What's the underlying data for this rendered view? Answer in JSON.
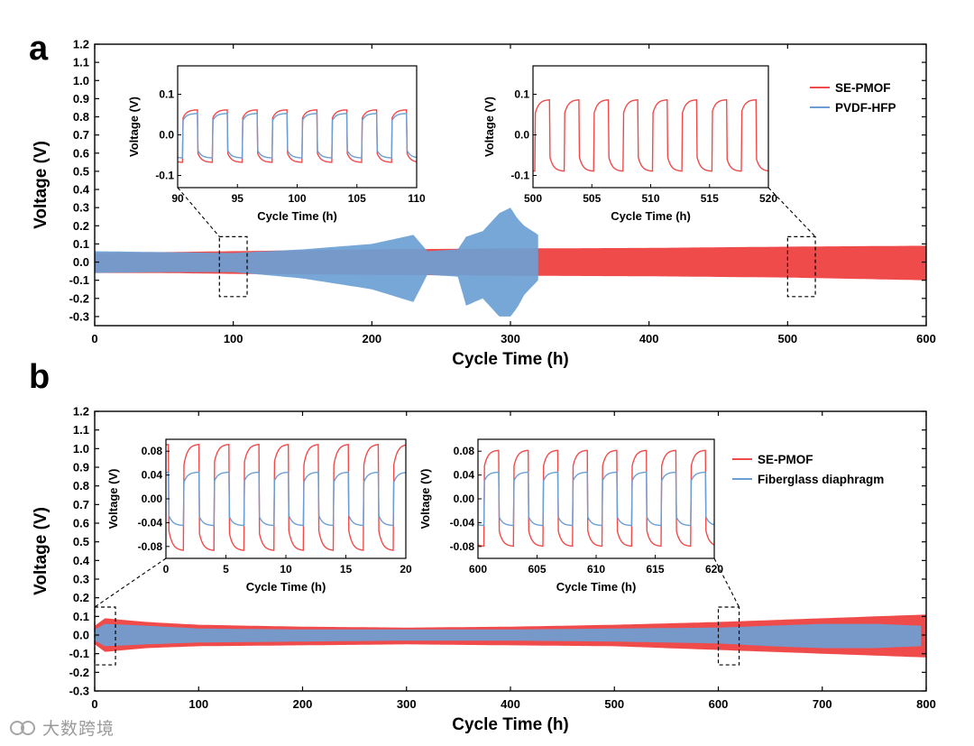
{
  "watermark": "大数跨境",
  "chart_data": [
    {
      "panel": "a",
      "type": "line",
      "xlabel": "Cycle Time (h)",
      "ylabel": "Voltage (V)",
      "xlim": [
        0,
        600
      ],
      "ylim": [
        -0.35,
        1.2
      ],
      "xticks": [
        0,
        100,
        200,
        300,
        400,
        500,
        600
      ],
      "yticks": [
        -0.3,
        -0.2,
        -0.1,
        0.0,
        0.1,
        0.2,
        0.3,
        0.4,
        0.5,
        0.6,
        0.7,
        0.8,
        0.9,
        1.0,
        1.1,
        1.2
      ],
      "legend": [
        "SE-PMOF",
        "PVDF-HFP"
      ],
      "legend_position": "top-right",
      "series": [
        {
          "name": "SE-PMOF",
          "color": "#f04b4b",
          "x_end": 600,
          "envelope_x": [
            0,
            50,
            100,
            200,
            300,
            400,
            500,
            600
          ],
          "upper": [
            0.05,
            0.055,
            0.06,
            0.07,
            0.075,
            0.078,
            0.085,
            0.09
          ],
          "lower": [
            -0.06,
            -0.06,
            -0.065,
            -0.07,
            -0.075,
            -0.078,
            -0.085,
            -0.1
          ]
        },
        {
          "name": "PVDF-HFP",
          "color": "#6b9fd4",
          "x_end": 320,
          "envelope_x": [
            0,
            50,
            100,
            150,
            200,
            230,
            240,
            262,
            268,
            280,
            292,
            300,
            305,
            310,
            320
          ],
          "upper": [
            0.06,
            0.055,
            0.05,
            0.07,
            0.1,
            0.15,
            0.06,
            0.07,
            0.14,
            0.17,
            0.27,
            0.3,
            0.24,
            0.2,
            0.15
          ],
          "lower": [
            -0.06,
            -0.055,
            -0.055,
            -0.09,
            -0.15,
            -0.22,
            -0.07,
            -0.08,
            -0.24,
            -0.2,
            -0.3,
            -0.3,
            -0.25,
            -0.18,
            -0.1
          ]
        }
      ],
      "zoom_boxes": [
        [
          90,
          110
        ],
        [
          500,
          520
        ]
      ],
      "insets": [
        {
          "xlabel": "Cycle Time (h)",
          "ylabel": "Voltage (V)",
          "xlim": [
            90,
            110
          ],
          "ylim": [
            -0.13,
            0.17
          ],
          "xticks": [
            90,
            95,
            100,
            105,
            110
          ],
          "yticks": [
            -0.1,
            0.0,
            0.1
          ],
          "period": 2.5,
          "x0": 90.4,
          "series": [
            {
              "name": "SE-PMOF",
              "color": "#f04b4b",
              "amp_pos": 0.062,
              "amp_neg": -0.068
            },
            {
              "name": "PVDF-HFP",
              "color": "#6b9fd4",
              "amp_pos": 0.053,
              "amp_neg": -0.057
            }
          ]
        },
        {
          "xlabel": "Cycle Time (h)",
          "ylabel": "Voltage (V)",
          "xlim": [
            500,
            520
          ],
          "ylim": [
            -0.13,
            0.17
          ],
          "xticks": [
            500,
            505,
            510,
            515,
            520
          ],
          "yticks": [
            -0.1,
            0.0,
            0.1
          ],
          "period": 2.5,
          "x0": 500.2,
          "series": [
            {
              "name": "SE-PMOF",
              "color": "#f04b4b",
              "amp_pos": 0.087,
              "amp_neg": -0.09
            }
          ]
        }
      ]
    },
    {
      "panel": "b",
      "type": "line",
      "xlabel": "Cycle Time (h)",
      "ylabel": "Voltage (V)",
      "xlim": [
        0,
        800
      ],
      "ylim": [
        -0.3,
        1.2
      ],
      "xticks": [
        0,
        100,
        200,
        300,
        400,
        500,
        600,
        700,
        800
      ],
      "yticks": [
        -0.3,
        -0.2,
        -0.1,
        0.0,
        0.1,
        0.2,
        0.3,
        0.4,
        0.5,
        0.6,
        0.7,
        0.8,
        0.9,
        1.0,
        1.1,
        1.2
      ],
      "legend": [
        "SE-PMOF",
        "Fiberglass diaphragm"
      ],
      "legend_position": "top-right",
      "series": [
        {
          "name": "SE-PMOF",
          "color": "#f04b4b",
          "x_end": 800,
          "envelope_x": [
            0,
            10,
            50,
            100,
            200,
            300,
            400,
            500,
            600,
            650,
            700,
            750,
            800
          ],
          "upper": [
            0.05,
            0.09,
            0.07,
            0.055,
            0.045,
            0.04,
            0.045,
            0.055,
            0.07,
            0.08,
            0.09,
            0.1,
            0.11
          ],
          "lower": [
            -0.05,
            -0.09,
            -0.07,
            -0.06,
            -0.055,
            -0.05,
            -0.055,
            -0.06,
            -0.08,
            -0.09,
            -0.1,
            -0.11,
            -0.12
          ]
        },
        {
          "name": "Fiberglass diaphragm",
          "color": "#6b9fd4",
          "x_end": 795,
          "envelope_x": [
            0,
            10,
            50,
            100,
            200,
            300,
            400,
            500,
            600,
            650,
            700,
            750,
            795
          ],
          "upper": [
            0.03,
            0.06,
            0.05,
            0.035,
            0.03,
            0.03,
            0.03,
            0.035,
            0.04,
            0.05,
            0.06,
            0.06,
            0.05
          ],
          "lower": [
            -0.03,
            -0.06,
            -0.05,
            -0.04,
            -0.035,
            -0.03,
            -0.03,
            -0.035,
            -0.045,
            -0.06,
            -0.07,
            -0.07,
            -0.06
          ]
        }
      ],
      "zoom_boxes": [
        [
          0,
          20
        ],
        [
          600,
          620
        ]
      ],
      "insets": [
        {
          "xlabel": "Cycle Time (h)",
          "ylabel": "Voltage (V)",
          "xlim": [
            0,
            20
          ],
          "ylim": [
            -0.1,
            0.1
          ],
          "xticks": [
            0,
            5,
            10,
            15,
            20
          ],
          "yticks": [
            -0.08,
            -0.04,
            0.0,
            0.04,
            0.08
          ],
          "period": 2.5,
          "x0": 1.5,
          "series": [
            {
              "name": "SE-PMOF",
              "color": "#f04b4b",
              "amp_pos": 0.092,
              "amp_neg": -0.087
            },
            {
              "name": "Fiberglass diaphragm",
              "color": "#6b9fd4",
              "amp_pos": 0.045,
              "amp_neg": -0.045
            }
          ]
        },
        {
          "xlabel": "Cycle Time (h)",
          "ylabel": "Voltage (V)",
          "xlim": [
            600,
            620
          ],
          "ylim": [
            -0.1,
            0.1
          ],
          "xticks": [
            600,
            605,
            610,
            615,
            620
          ],
          "yticks": [
            -0.08,
            -0.04,
            0.0,
            0.04,
            0.08
          ],
          "period": 2.5,
          "x0": 600.5,
          "series": [
            {
              "name": "SE-PMOF",
              "color": "#f04b4b",
              "amp_pos": 0.082,
              "amp_neg": -0.08
            },
            {
              "name": "Fiberglass diaphragm",
              "color": "#6b9fd4",
              "amp_pos": 0.045,
              "amp_neg": -0.045
            }
          ]
        }
      ]
    }
  ]
}
